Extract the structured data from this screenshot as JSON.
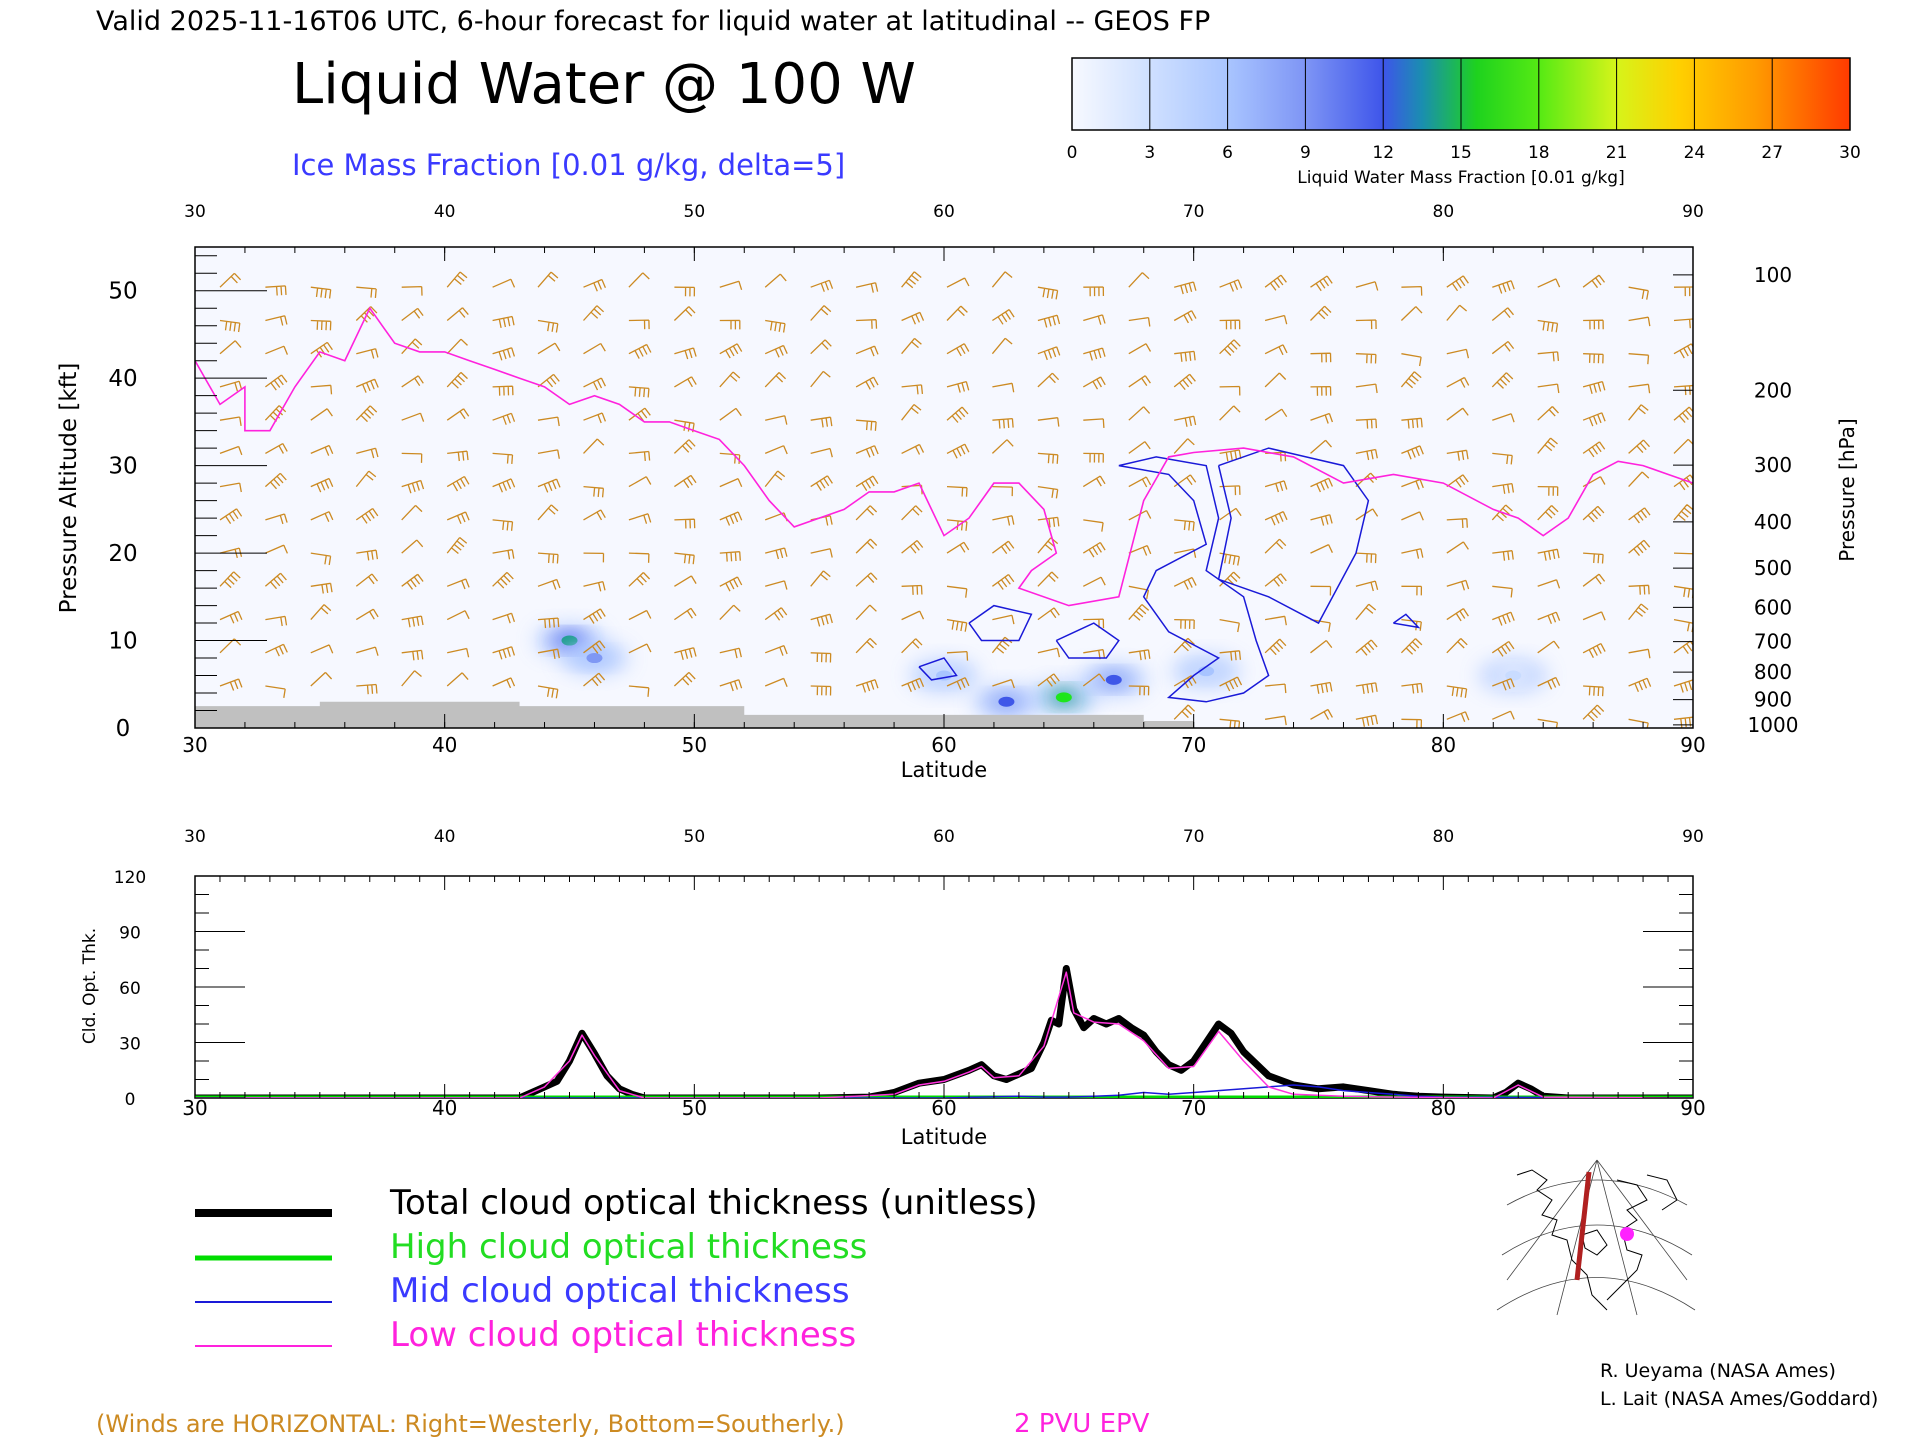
{
  "header": {
    "valid_line": "Valid 2025-11-16T06 UTC, 6-hour forecast for liquid water at latitudinal -- GEOS FP",
    "main_title": "Liquid Water @ 100 W",
    "subtitle": "Ice Mass Fraction [0.01 g/kg, delta=5]"
  },
  "colorbar": {
    "ticks": [
      "0",
      "3",
      "6",
      "9",
      "12",
      "15",
      "18",
      "21",
      "24",
      "27",
      "30"
    ],
    "colors": [
      "#f6f8ff",
      "#c9dcff",
      "#a8c4ff",
      "#7f98f4",
      "#3f57e8",
      "#1a9c8a",
      "#1ee61a",
      "#8ef018",
      "#f0f018",
      "#ffb000",
      "#ff5a00"
    ],
    "label": "Liquid Water Mass Fraction [0.01 g/kg]"
  },
  "chart_data": [
    {
      "type": "heatmap",
      "xlabel": "Latitude",
      "ylabel": "Pressure Altitude [kft]",
      "ylabel_right": "Pressure [hPa]",
      "x_ticks": [
        "30",
        "40",
        "50",
        "60",
        "70",
        "80",
        "90"
      ],
      "y_ticks": [
        "0",
        "10",
        "20",
        "30",
        "40",
        "50"
      ],
      "pressure_ticks": [
        "100",
        "200",
        "300",
        "400",
        "500",
        "600",
        "700",
        "800",
        "900",
        "1000"
      ],
      "xlim": [
        30,
        90
      ],
      "ylim": [
        0,
        55
      ],
      "liquid_water_blobs": [
        {
          "lat": 45.0,
          "kft": 10.0,
          "value": 14
        },
        {
          "lat": 46.0,
          "kft": 8.0,
          "value": 8
        },
        {
          "lat": 64.8,
          "kft": 3.5,
          "value": 18
        },
        {
          "lat": 62.5,
          "kft": 3.0,
          "value": 11
        },
        {
          "lat": 66.8,
          "kft": 5.5,
          "value": 13
        },
        {
          "lat": 60.0,
          "kft": 6.0,
          "value": 7
        },
        {
          "lat": 70.5,
          "kft": 6.5,
          "value": 5
        },
        {
          "lat": 82.8,
          "kft": 6.0,
          "value": 4
        }
      ],
      "epv_2pvu": [
        [
          30,
          42
        ],
        [
          31,
          37
        ],
        [
          32,
          39
        ],
        [
          32,
          34
        ],
        [
          33,
          34
        ],
        [
          34,
          39
        ],
        [
          35,
          43
        ],
        [
          36,
          42
        ],
        [
          37,
          48
        ],
        [
          38,
          44
        ],
        [
          39,
          43
        ],
        [
          40,
          43
        ],
        [
          41,
          42
        ],
        [
          42,
          41
        ],
        [
          43,
          40
        ],
        [
          44,
          39
        ],
        [
          45,
          37
        ],
        [
          46,
          38
        ],
        [
          47,
          37
        ],
        [
          48,
          35
        ],
        [
          49,
          35
        ],
        [
          50,
          34
        ],
        [
          51,
          33
        ],
        [
          52,
          30
        ],
        [
          53,
          26
        ],
        [
          54,
          23
        ],
        [
          55,
          24
        ],
        [
          56,
          25
        ],
        [
          57,
          27
        ],
        [
          58,
          27
        ],
        [
          59,
          28
        ],
        [
          60,
          22
        ],
        [
          61,
          24
        ],
        [
          62,
          28
        ],
        [
          63,
          28
        ],
        [
          64,
          25
        ],
        [
          64.5,
          20
        ],
        [
          63.5,
          18
        ],
        [
          63,
          16
        ],
        [
          65,
          14
        ],
        [
          67,
          15
        ],
        [
          68,
          26
        ],
        [
          69,
          31
        ],
        [
          70,
          31.5
        ],
        [
          72,
          32
        ],
        [
          74,
          31
        ],
        [
          76,
          28
        ],
        [
          78,
          29
        ],
        [
          80,
          28
        ],
        [
          82,
          25
        ],
        [
          83,
          24
        ],
        [
          84,
          22
        ],
        [
          85,
          24
        ],
        [
          86,
          29
        ],
        [
          87,
          30.5
        ],
        [
          88,
          30
        ],
        [
          89,
          29
        ],
        [
          90,
          28
        ]
      ],
      "ice_contours": [
        [
          [
            67,
            30
          ],
          [
            69,
            29
          ],
          [
            70,
            26
          ],
          [
            70.5,
            21
          ],
          [
            68.5,
            18
          ],
          [
            68,
            15
          ],
          [
            69,
            11
          ],
          [
            71,
            8
          ],
          [
            70,
            6
          ],
          [
            69,
            3.5
          ],
          [
            70.5,
            3
          ],
          [
            72,
            4
          ],
          [
            73,
            6
          ],
          [
            72.5,
            10
          ],
          [
            72,
            15
          ],
          [
            70.5,
            18
          ],
          [
            71,
            24
          ],
          [
            70.5,
            30
          ],
          [
            68.5,
            31
          ],
          [
            67,
            30
          ]
        ],
        [
          [
            71,
            30
          ],
          [
            73,
            32
          ],
          [
            74.5,
            31
          ],
          [
            76,
            30
          ],
          [
            77,
            26
          ],
          [
            76.5,
            20
          ],
          [
            75,
            12
          ],
          [
            73,
            15
          ],
          [
            71,
            17
          ],
          [
            71.5,
            24
          ],
          [
            71,
            30
          ]
        ],
        [
          [
            61,
            12
          ],
          [
            62,
            14
          ],
          [
            63.5,
            13
          ],
          [
            63,
            10
          ],
          [
            61.5,
            10
          ],
          [
            61,
            12
          ]
        ],
        [
          [
            64.5,
            10
          ],
          [
            66,
            12
          ],
          [
            67,
            10
          ],
          [
            66.5,
            8
          ],
          [
            65,
            8
          ],
          [
            64.5,
            10
          ]
        ],
        [
          [
            59,
            7
          ],
          [
            60,
            8
          ],
          [
            60.5,
            6
          ],
          [
            59.5,
            5.5
          ],
          [
            59,
            7
          ]
        ],
        [
          [
            78,
            12
          ],
          [
            78.5,
            13
          ],
          [
            79,
            11.5
          ],
          [
            78,
            12
          ]
        ]
      ],
      "ground_profile": [
        [
          30,
          2.5
        ],
        [
          35,
          2.5
        ],
        [
          35,
          3
        ],
        [
          43,
          3
        ],
        [
          43,
          2.5
        ],
        [
          52,
          2.5
        ],
        [
          52,
          1.5
        ],
        [
          68,
          1.5
        ],
        [
          68,
          0.8
        ],
        [
          70,
          0.8
        ],
        [
          70,
          0
        ],
        [
          30,
          0
        ]
      ],
      "wind_barbs_note": "Winds are HORIZONTAL: Right=Westerly, Bottom=Southerly.",
      "epv_label": "2 PVU EPV"
    },
    {
      "type": "line",
      "xlabel": "Latitude",
      "ylabel": "Cld. Opt. Thk.",
      "x_ticks": [
        "30",
        "40",
        "50",
        "60",
        "70",
        "80",
        "90"
      ],
      "y_ticks": [
        "0",
        "30",
        "60",
        "90",
        "120"
      ],
      "xlim": [
        30,
        90
      ],
      "ylim": [
        0,
        120
      ],
      "series": [
        {
          "name": "Total cloud optical thickness (unitless)",
          "color": "#000000",
          "points": [
            [
              30,
              0
            ],
            [
              43,
              0
            ],
            [
              43.5,
              3
            ],
            [
              44,
              6
            ],
            [
              44.5,
              9
            ],
            [
              45,
              20
            ],
            [
              45.5,
              35
            ],
            [
              46,
              24
            ],
            [
              46.5,
              12
            ],
            [
              47,
              5
            ],
            [
              47.5,
              2
            ],
            [
              48,
              0
            ],
            [
              55,
              0
            ],
            [
              57,
              0.5
            ],
            [
              58,
              3
            ],
            [
              59,
              8
            ],
            [
              60,
              10
            ],
            [
              61,
              15
            ],
            [
              61.5,
              18
            ],
            [
              62,
              12
            ],
            [
              62.5,
              10
            ],
            [
              63,
              13
            ],
            [
              63.5,
              16
            ],
            [
              64,
              30
            ],
            [
              64.3,
              42
            ],
            [
              64.6,
              40
            ],
            [
              64.9,
              70
            ],
            [
              65.2,
              48
            ],
            [
              65.6,
              38
            ],
            [
              66,
              43
            ],
            [
              66.5,
              40
            ],
            [
              67,
              43
            ],
            [
              67.5,
              38
            ],
            [
              68,
              34
            ],
            [
              68.5,
              25
            ],
            [
              69,
              18
            ],
            [
              69.5,
              15
            ],
            [
              70,
              20
            ],
            [
              70.5,
              30
            ],
            [
              71,
              40
            ],
            [
              71.5,
              35
            ],
            [
              72,
              25
            ],
            [
              73,
              12
            ],
            [
              74,
              7
            ],
            [
              75,
              5
            ],
            [
              76,
              6
            ],
            [
              77,
              4
            ],
            [
              78,
              2
            ],
            [
              79,
              1
            ],
            [
              80,
              0.5
            ],
            [
              82,
              0
            ],
            [
              82.5,
              3
            ],
            [
              83,
              8
            ],
            [
              83.5,
              5
            ],
            [
              84,
              1
            ],
            [
              85,
              0
            ],
            [
              90,
              0
            ]
          ]
        },
        {
          "name": "High cloud optical thickness",
          "color": "#00dd00",
          "points": [
            [
              30,
              0
            ],
            [
              90,
              0
            ]
          ]
        },
        {
          "name": "Mid cloud optical thickness",
          "color": "#1a1ad8",
          "points": [
            [
              30,
              0
            ],
            [
              60,
              0
            ],
            [
              63,
              1
            ],
            [
              64,
              0.5
            ],
            [
              65,
              0.5
            ],
            [
              66,
              1
            ],
            [
              67,
              1.5
            ],
            [
              68,
              3
            ],
            [
              69,
              2
            ],
            [
              70,
              3
            ],
            [
              71,
              4
            ],
            [
              72,
              5
            ],
            [
              73,
              6
            ],
            [
              74,
              7
            ],
            [
              75,
              6
            ],
            [
              76,
              4
            ],
            [
              77,
              3
            ],
            [
              78,
              2
            ],
            [
              79,
              1
            ],
            [
              80,
              0.5
            ],
            [
              90,
              0
            ]
          ]
        },
        {
          "name": "Low cloud optical thickness",
          "color": "#ff33dd",
          "points": [
            [
              30,
              0
            ],
            [
              43,
              0
            ],
            [
              44,
              6
            ],
            [
              45,
              20
            ],
            [
              45.5,
              34
            ],
            [
              46,
              23
            ],
            [
              47,
              4
            ],
            [
              48,
              0
            ],
            [
              55,
              0
            ],
            [
              58,
              2
            ],
            [
              59,
              7
            ],
            [
              60,
              9
            ],
            [
              61,
              14
            ],
            [
              61.5,
              17
            ],
            [
              62,
              11
            ],
            [
              63,
              12
            ],
            [
              64,
              28
            ],
            [
              64.9,
              68
            ],
            [
              65.2,
              46
            ],
            [
              66,
              41
            ],
            [
              67,
              40
            ],
            [
              68,
              31
            ],
            [
              69,
              16
            ],
            [
              70,
              17
            ],
            [
              71,
              36
            ],
            [
              72,
              20
            ],
            [
              73,
              6
            ],
            [
              74,
              2
            ],
            [
              76,
              1
            ],
            [
              78,
              0.5
            ],
            [
              82,
              0
            ],
            [
              83,
              7
            ],
            [
              84,
              0.5
            ],
            [
              90,
              0
            ]
          ]
        }
      ]
    }
  ],
  "legend": {
    "total": "Total cloud optical thickness (unitless)",
    "high": "High cloud optical thickness",
    "mid": "Mid cloud optical thickness",
    "low": "Low cloud optical thickness"
  },
  "credits": {
    "line1": "R. Ueyama (NASA Ames)",
    "line2": "L. Lait (NASA Ames/Goddard)"
  },
  "footer": {
    "winds_note": "(Winds are HORIZONTAL: Right=Westerly, Bottom=Southerly.)",
    "epv_label": "2 PVU EPV"
  },
  "colors": {
    "title": "#000000",
    "ice": "#3a3aff",
    "wind": "#cc8a22",
    "epv": "#ff22dd",
    "ground": "#c0c0c0"
  }
}
